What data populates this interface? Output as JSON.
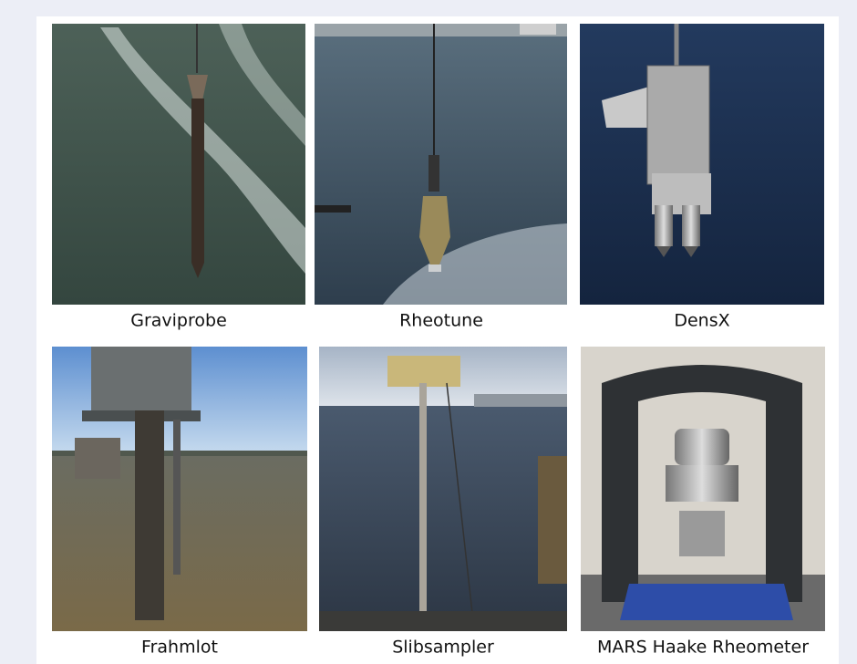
{
  "panels": [
    {
      "caption": "Graviprobe"
    },
    {
      "caption": "Rheotune"
    },
    {
      "caption": "DensX"
    },
    {
      "caption": "Frahmlot"
    },
    {
      "caption": "Slibsampler"
    },
    {
      "caption": "MARS Haake Rheometer"
    }
  ]
}
